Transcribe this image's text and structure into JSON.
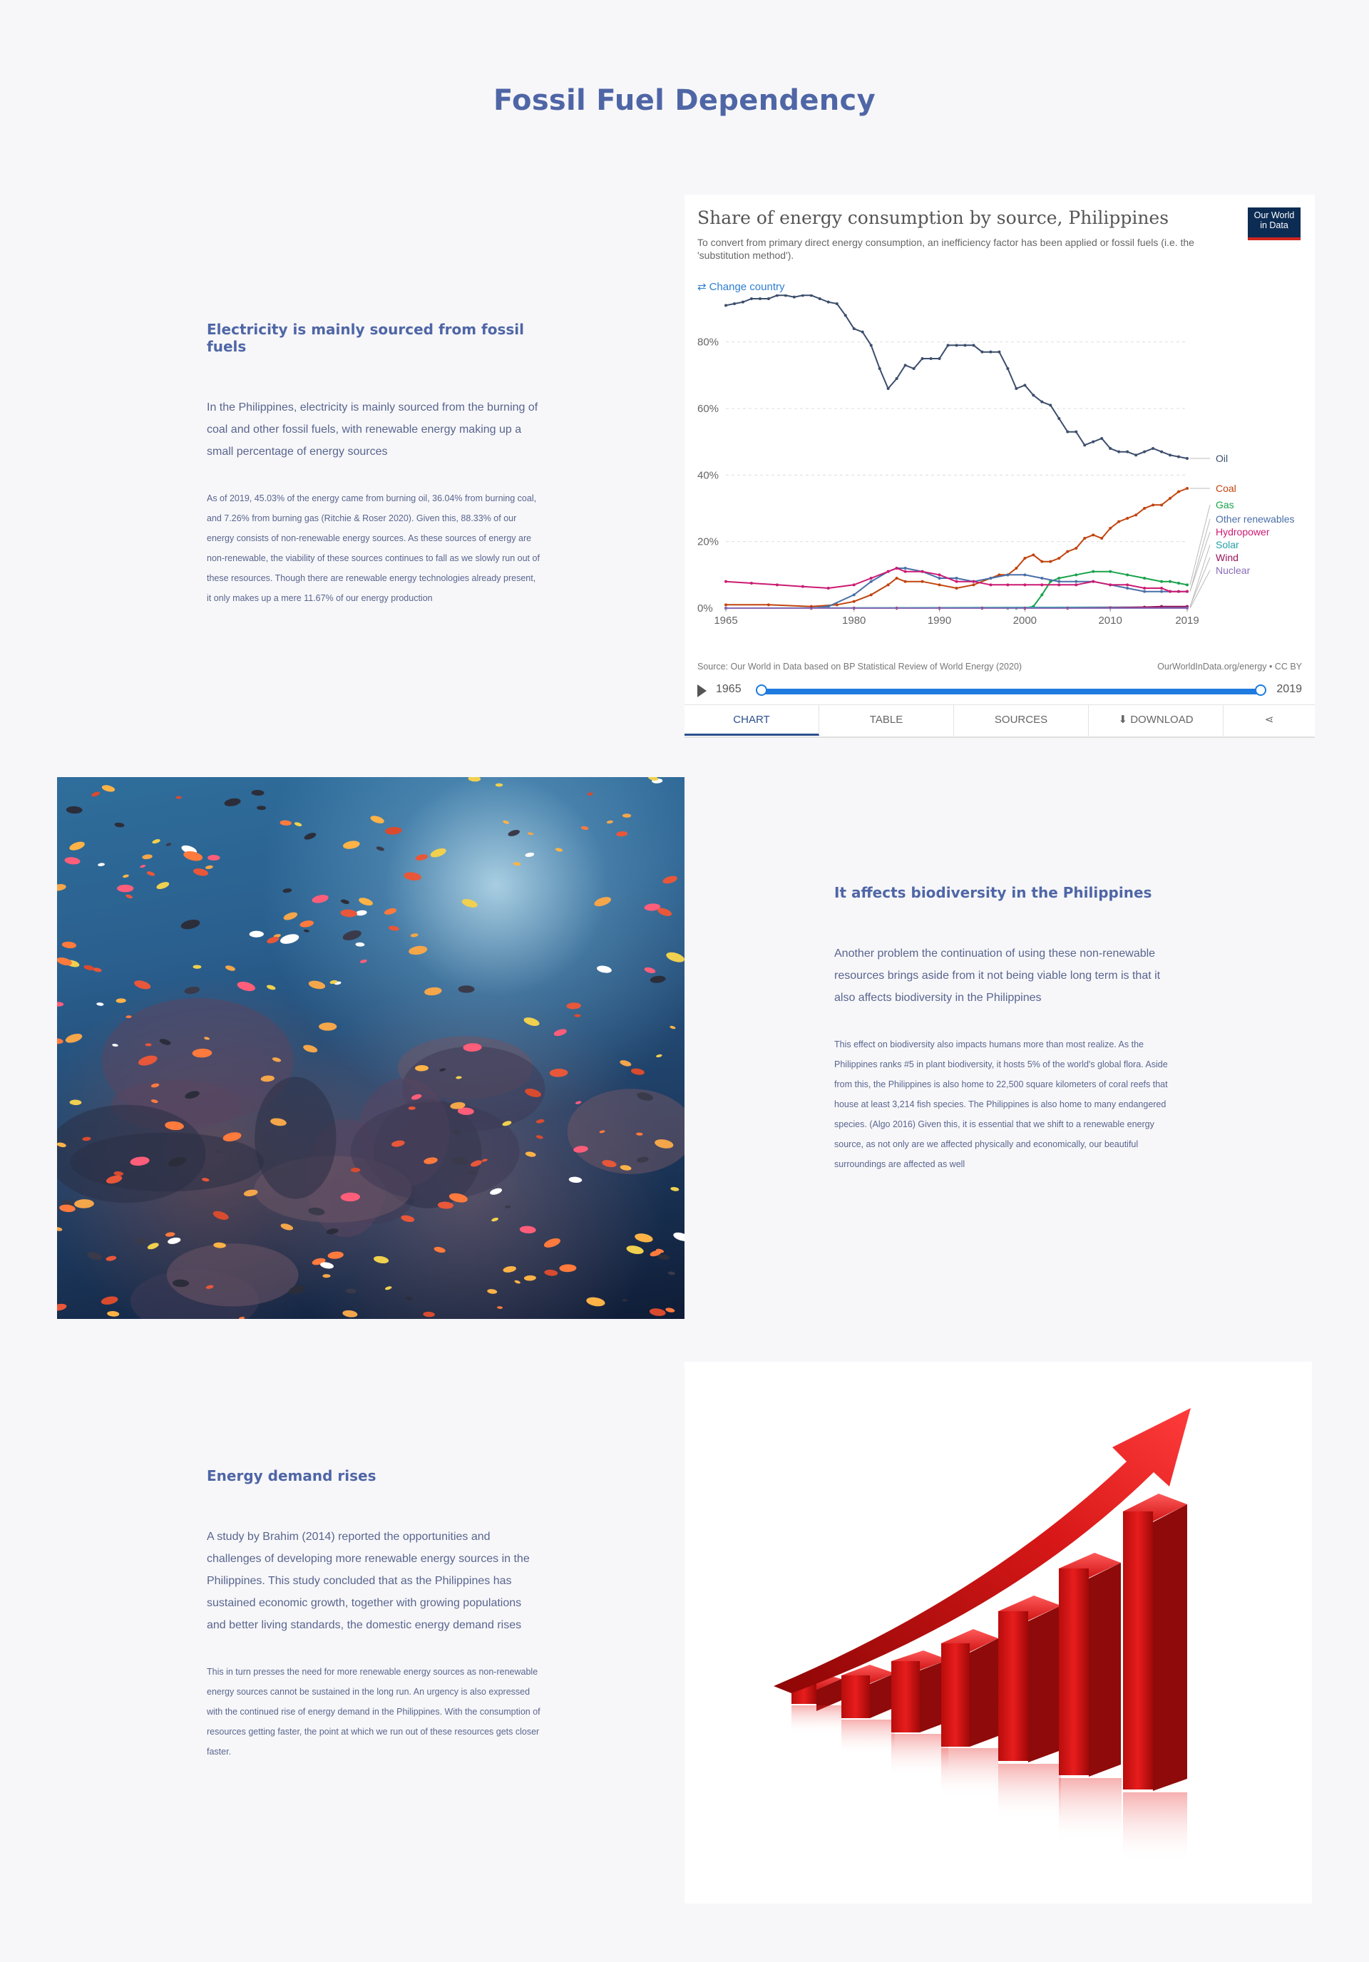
{
  "page": {
    "title": "Fossil Fuel Dependency"
  },
  "section1": {
    "heading": "Electricity is mainly sourced from fossil fuels",
    "lead": "In the Philippines, electricity is mainly sourced from the burning of coal and other fossil fuels, with renewable energy making up a small percentage of energy sources",
    "body": "As of 2019, 45.03% of the energy came from burning oil, 36.04% from burning coal, and 7.26% from burning gas (Ritchie & Roser 2020). Given this, 88.33% of our energy consists of non-renewable energy sources. As these sources of energy are non-renewable, the viability of these sources continues to fall as we slowly run out of these resources. Though there are renewable energy technologies already present, it only makes up a mere 11.67% of our energy production"
  },
  "owid": {
    "title": "Share of energy consumption by source, Philippines",
    "subtitle": "To convert from primary direct energy consumption, an inefficiency factor has been applied or fossil fuels (i.e. the 'substitution method').",
    "logo_line1": "Our World",
    "logo_line2": "in Data",
    "change_country": "Change country",
    "source": "Source: Our World in Data based on BP Statistical Review of World Energy (2020)",
    "license": "OurWorldInData.org/energy • CC BY",
    "timeline_start": "1965",
    "timeline_end": "2019",
    "tabs": {
      "chart": "CHART",
      "table": "TABLE",
      "sources": "SOURCES",
      "download": "DOWNLOAD"
    },
    "icons": {
      "swap": "swap-icon",
      "play": "play-icon",
      "download": "download-icon",
      "share": "share-icon"
    }
  },
  "chart_data": {
    "type": "line",
    "title": "Share of energy consumption by source, Philippines",
    "xlabel": "",
    "ylabel": "",
    "xlim": [
      1965,
      2019
    ],
    "ylim": [
      0,
      90
    ],
    "x_ticks": [
      1965,
      1980,
      1990,
      2000,
      2010,
      2019
    ],
    "y_ticks": [
      0,
      20,
      40,
      60,
      80
    ],
    "y_tick_labels": [
      "0%",
      "20%",
      "40%",
      "60%",
      "80%"
    ],
    "grid": true,
    "series": [
      {
        "name": "Oil",
        "color": "#3c4e6c",
        "x": [
          1965,
          1966,
          1967,
          1968,
          1969,
          1970,
          1971,
          1972,
          1973,
          1974,
          1975,
          1976,
          1977,
          1978,
          1979,
          1980,
          1981,
          1982,
          1983,
          1984,
          1985,
          1986,
          1987,
          1988,
          1989,
          1990,
          1991,
          1992,
          1993,
          1994,
          1995,
          1996,
          1997,
          1998,
          1999,
          2000,
          2001,
          2002,
          2003,
          2004,
          2005,
          2006,
          2007,
          2008,
          2009,
          2010,
          2011,
          2012,
          2013,
          2014,
          2015,
          2016,
          2017,
          2018,
          2019
        ],
        "y": [
          91,
          91.5,
          92,
          93,
          93,
          93,
          94,
          94,
          93.5,
          94,
          94,
          93,
          92,
          91.5,
          88,
          84,
          83,
          79,
          72,
          66,
          69,
          73,
          72,
          75,
          75,
          75,
          79,
          79,
          79,
          79,
          77,
          77,
          77,
          72,
          66,
          67,
          64,
          62,
          61,
          57,
          53,
          53,
          49,
          50,
          51,
          48,
          47,
          47,
          46,
          47,
          48,
          47,
          46,
          45.5,
          45
        ]
      },
      {
        "name": "Coal",
        "color": "#c1440e",
        "x": [
          1965,
          1970,
          1975,
          1978,
          1980,
          1982,
          1984,
          1985,
          1986,
          1988,
          1990,
          1992,
          1994,
          1996,
          1997,
          1998,
          1999,
          2000,
          2001,
          2002,
          2003,
          2004,
          2005,
          2006,
          2007,
          2008,
          2009,
          2010,
          2011,
          2012,
          2013,
          2014,
          2015,
          2016,
          2017,
          2018,
          2019
        ],
        "y": [
          1,
          1,
          0.5,
          1,
          2,
          4,
          7,
          9,
          8,
          8,
          7,
          6,
          7,
          9,
          10,
          10,
          12,
          15,
          16,
          14,
          14,
          15,
          17,
          18,
          21,
          22,
          21,
          24,
          26,
          27,
          28,
          30,
          31,
          31,
          33,
          35,
          36
        ]
      },
      {
        "name": "Gas",
        "color": "#18a24b",
        "x": [
          1965,
          1998,
          1999,
          2000,
          2001,
          2002,
          2003,
          2004,
          2006,
          2008,
          2010,
          2012,
          2014,
          2016,
          2017,
          2018,
          2019
        ],
        "y": [
          0,
          0,
          0,
          0,
          0.5,
          4,
          8,
          9,
          10,
          11,
          11,
          10,
          9,
          8,
          8,
          7.5,
          7
        ]
      },
      {
        "name": "Other renewables",
        "color": "#4a6fa8",
        "x": [
          1965,
          1975,
          1977,
          1980,
          1982,
          1984,
          1985,
          1986,
          1988,
          1990,
          1992,
          1994,
          1996,
          1998,
          2000,
          2002,
          2004,
          2006,
          2008,
          2010,
          2012,
          2014,
          2016,
          2017,
          2018,
          2019
        ],
        "y": [
          0,
          0,
          0.5,
          4,
          8,
          11,
          12,
          12,
          11,
          9,
          9,
          8,
          9,
          10,
          10,
          9,
          8,
          8,
          8,
          7,
          6,
          5,
          5,
          5,
          5,
          5
        ]
      },
      {
        "name": "Hydropower",
        "color": "#cc1a73",
        "x": [
          1965,
          1968,
          1971,
          1974,
          1977,
          1980,
          1982,
          1984,
          1985,
          1986,
          1988,
          1990,
          1992,
          1994,
          1996,
          1998,
          2000,
          2002,
          2004,
          2006,
          2008,
          2010,
          2012,
          2014,
          2016,
          2017,
          2018,
          2019
        ],
        "y": [
          8,
          7.5,
          7,
          6.5,
          6,
          7,
          9,
          11,
          12,
          11,
          11,
          10,
          8,
          8,
          7,
          7,
          7,
          7,
          7,
          7,
          8,
          7,
          7,
          6,
          6,
          5,
          5,
          5
        ]
      },
      {
        "name": "Solar",
        "color": "#24a3a8",
        "x": [
          1965,
          2019
        ],
        "y": [
          0,
          0.3
        ]
      },
      {
        "name": "Wind",
        "color": "#96145c",
        "x": [
          1965,
          1975,
          1980,
          1985,
          1990,
          1995,
          2000,
          2005,
          2010,
          2014,
          2016,
          2019
        ],
        "y": [
          0,
          0,
          0,
          0,
          0,
          0,
          0,
          0,
          0.1,
          0.3,
          0.5,
          0.5
        ]
      },
      {
        "name": "Nuclear",
        "color": "#8a6ab6",
        "x": [
          1965,
          2019
        ],
        "y": [
          0,
          0
        ]
      }
    ]
  },
  "section2": {
    "heading": "It affects biodiversity in the Philippines",
    "lead": "Another problem the continuation of using these non-renewable resources brings aside from it not being viable long term is that it also affects biodiversity in the Philippines",
    "body": "This effect on biodiversity also impacts humans more than most realize. As the Philippines ranks #5 in plant biodiversity, it hosts 5% of the world's global flora. Aside from this, the Philippines is also home to 22,500 square kilometers of coral reefs that house at least 3,214 fish species. The Philippines is also home to many endangered species. (Algo 2016) Given this, it is essential that we shift to a renewable energy source, as not only are we affected physically and economically, our beautiful surroundings are affected as well"
  },
  "section3": {
    "heading": "Energy demand rises",
    "lead": "A study by Brahim (2014) reported the opportunities and challenges of developing more renewable energy sources in the Philippines. This study concluded that as the Philippines has sustained economic growth, together with growing populations and better living standards, the domestic energy demand rises",
    "body": "This in turn presses the need for more renewable energy sources as non-renewable energy sources cannot be sustained in the long run. An urgency is also expressed with the continued rise of energy demand in the Philippines. With the consumption of resources getting faster, the point at which we run out of these resources gets closer faster."
  }
}
